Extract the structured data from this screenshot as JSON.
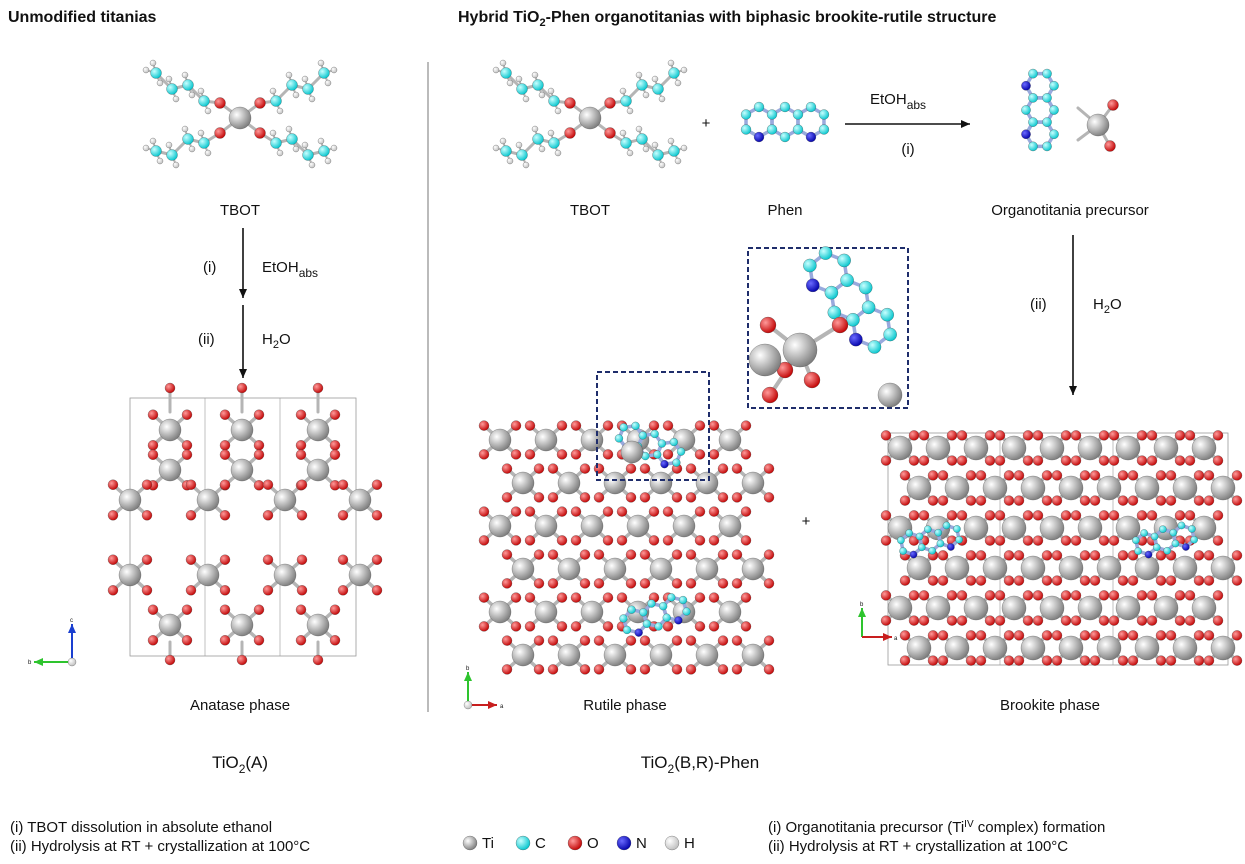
{
  "left": {
    "title": "Unmodified titanias",
    "reactant": "TBOT",
    "step_1": {
      "label": "(i)",
      "reagent": "EtOH",
      "reagent_sub": "abs"
    },
    "step_2": {
      "label": "(ii)",
      "reagent": "H",
      "reagent_sub": "2",
      "reagent_end": "O"
    },
    "phase": "Anatase phase",
    "product": {
      "main": "TiO",
      "sub": "2",
      "end": "(A)"
    },
    "axis_labels": [
      "c",
      "b"
    ],
    "notes": [
      "(i) TBOT dissolution in absolute ethanol",
      "(ii) Hydrolysis at RT + crystallization at 100°C"
    ]
  },
  "right": {
    "title": {
      "start": "Hybrid TiO",
      "sub": "2",
      "end": "-Phen organotitanias with biphasic brookite-rutile structure"
    },
    "reactant_1": "TBOT",
    "plus_1": "+",
    "reactant_2": "Phen",
    "step_1": {
      "label": "(i)",
      "reagent": "EtOH",
      "reagent_sub": "abs"
    },
    "intermediate": "Organotitania precursor",
    "step_2": {
      "label": "(ii)",
      "reagent": "H",
      "reagent_sub": "2",
      "reagent_end": "O"
    },
    "phases": [
      "Rutile phase",
      "Brookite phase"
    ],
    "plus_2": "+",
    "product": {
      "main": "TiO",
      "sub": "2",
      "end": "(B,R)-Phen"
    },
    "rutile_axis_labels": [
      "b",
      "a"
    ],
    "brookite_axis_labels": [
      "b",
      "a"
    ],
    "notes": [
      {
        "start": "(i) Organotitania precursor (Ti",
        "sup": "IV",
        "end": " complex) formation"
      },
      "(ii) Hydrolysis at RT + crystallization at 100°C"
    ]
  },
  "legend": [
    "Ti",
    "C",
    "O",
    "N",
    "H"
  ]
}
